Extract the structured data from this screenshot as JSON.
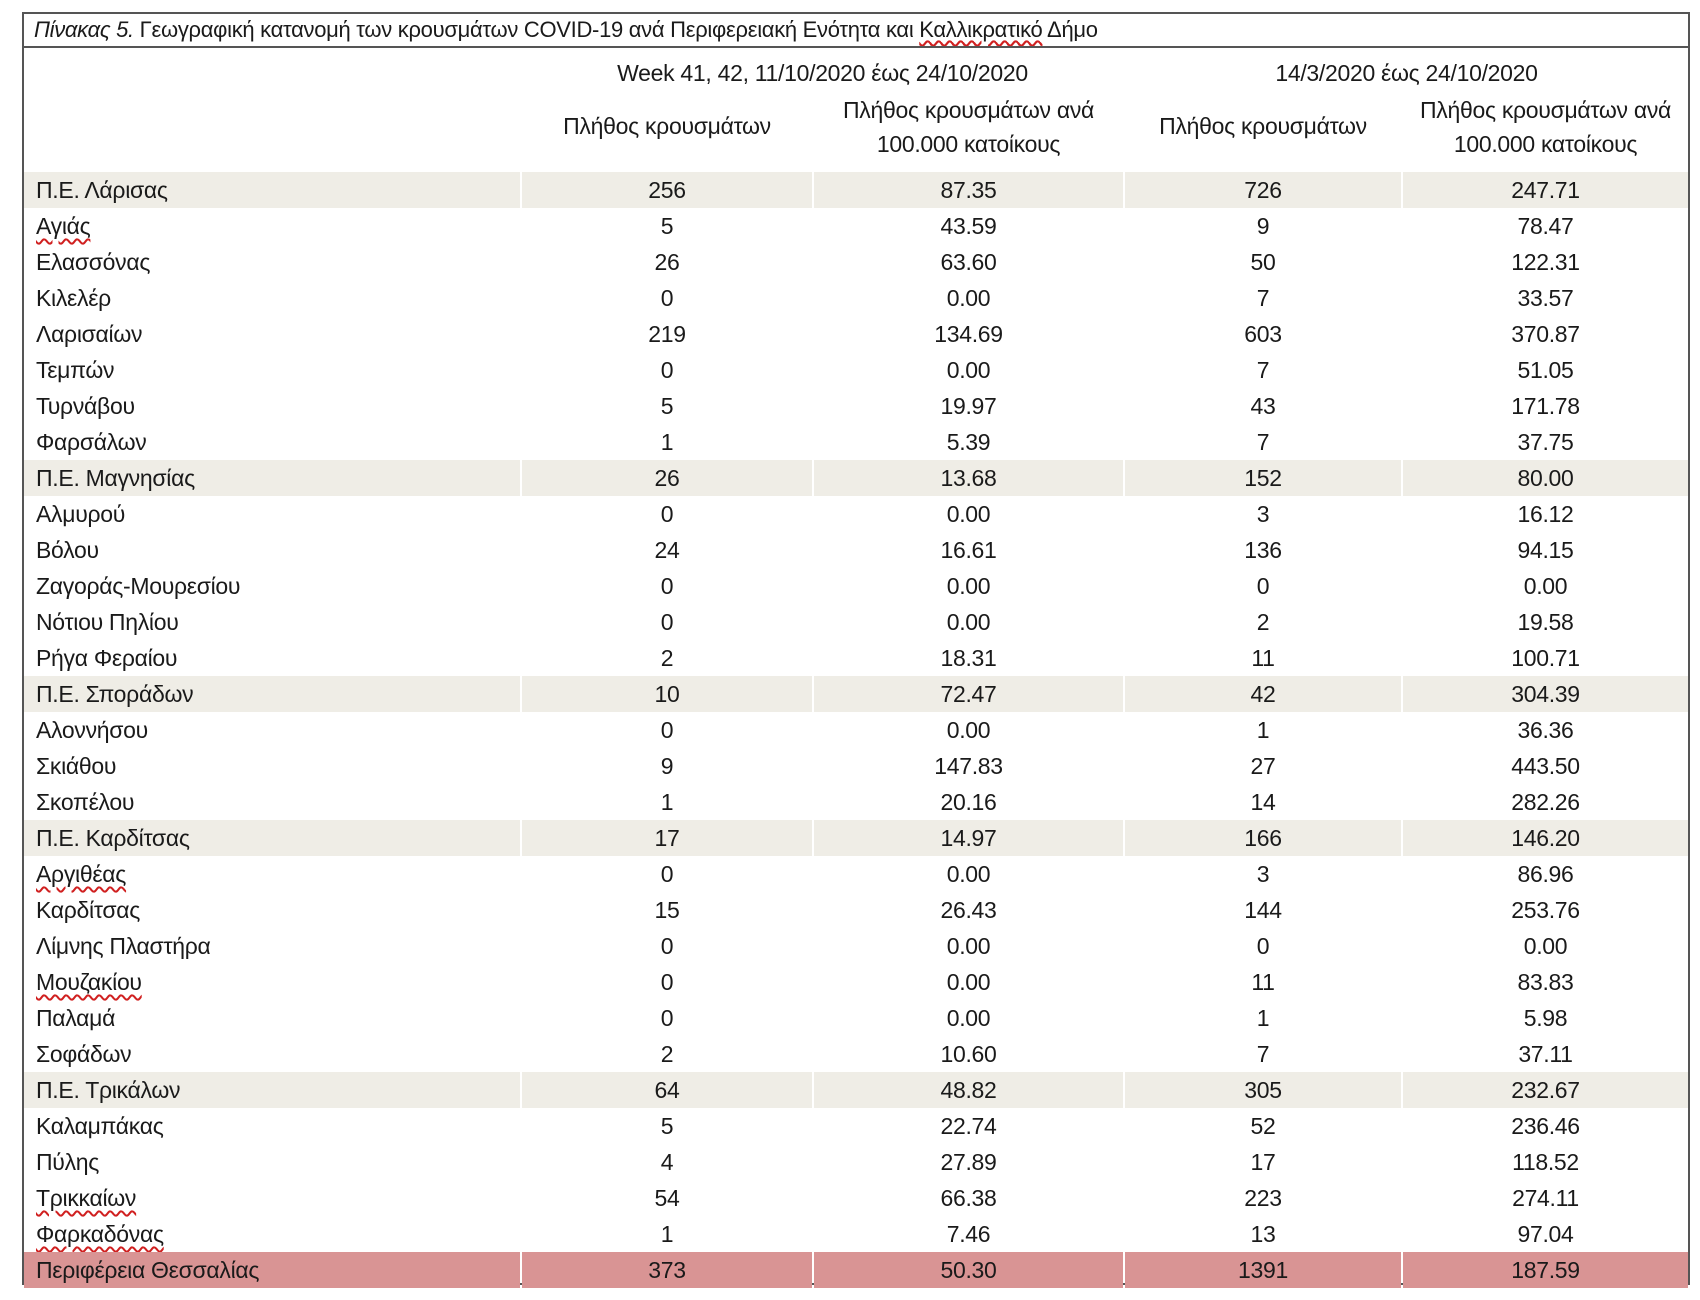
{
  "caption": {
    "label": "Πίνακας 5.",
    "text_before": " Γεωγραφική κατανομή των κρουσμάτων COVID-19 ανά Περιφερειακή Ενότητα και ",
    "text_marked": "Καλλικρατικό",
    "text_after": " Δήμο"
  },
  "groups": {
    "period1": "Week 41, 42, 11/10/2020 έως 24/10/2020",
    "period2": "14/3/2020 έως 24/10/2020"
  },
  "columns": {
    "count": "Πλήθος κρουσμάτων",
    "rate_line1": "Πλήθος κρουσμάτων ανά",
    "rate_line2": "100.000 κατοίκους"
  },
  "rows": [
    {
      "name": "Π.Ε. Λάρισας",
      "v1": "256",
      "v2": "87.35",
      "v3": "726",
      "v4": "247.71",
      "kind": "shaded"
    },
    {
      "name": "Αγιάς",
      "v1": "5",
      "v2": "43.59",
      "v3": "9",
      "v4": "78.47",
      "kind": "plain",
      "marked": true
    },
    {
      "name": "Ελασσόνας",
      "v1": "26",
      "v2": "63.60",
      "v3": "50",
      "v4": "122.31",
      "kind": "plain"
    },
    {
      "name": "Κιλελέρ",
      "v1": "0",
      "v2": "0.00",
      "v3": "7",
      "v4": "33.57",
      "kind": "plain"
    },
    {
      "name": "Λαρισαίων",
      "v1": "219",
      "v2": "134.69",
      "v3": "603",
      "v4": "370.87",
      "kind": "plain"
    },
    {
      "name": "Τεμπών",
      "v1": "0",
      "v2": "0.00",
      "v3": "7",
      "v4": "51.05",
      "kind": "plain"
    },
    {
      "name": "Τυρνάβου",
      "v1": "5",
      "v2": "19.97",
      "v3": "43",
      "v4": "171.78",
      "kind": "plain"
    },
    {
      "name": "Φαρσάλων",
      "v1": "1",
      "v2": "5.39",
      "v3": "7",
      "v4": "37.75",
      "kind": "plain"
    },
    {
      "name": "Π.Ε. Μαγνησίας",
      "v1": "26",
      "v2": "13.68",
      "v3": "152",
      "v4": "80.00",
      "kind": "shaded"
    },
    {
      "name": "Αλμυρού",
      "v1": "0",
      "v2": "0.00",
      "v3": "3",
      "v4": "16.12",
      "kind": "plain"
    },
    {
      "name": "Βόλου",
      "v1": "24",
      "v2": "16.61",
      "v3": "136",
      "v4": "94.15",
      "kind": "plain"
    },
    {
      "name": "Ζαγοράς-Μουρεσίου",
      "v1": "0",
      "v2": "0.00",
      "v3": "0",
      "v4": "0.00",
      "kind": "plain"
    },
    {
      "name": "Νότιου Πηλίου",
      "v1": "0",
      "v2": "0.00",
      "v3": "2",
      "v4": "19.58",
      "kind": "plain"
    },
    {
      "name": "Ρήγα Φεραίου",
      "v1": "2",
      "v2": "18.31",
      "v3": "11",
      "v4": "100.71",
      "kind": "plain"
    },
    {
      "name": "Π.Ε. Σποράδων",
      "v1": "10",
      "v2": "72.47",
      "v3": "42",
      "v4": "304.39",
      "kind": "shaded"
    },
    {
      "name": "Αλοννήσου",
      "v1": "0",
      "v2": "0.00",
      "v3": "1",
      "v4": "36.36",
      "kind": "plain"
    },
    {
      "name": "Σκιάθου",
      "v1": "9",
      "v2": "147.83",
      "v3": "27",
      "v4": "443.50",
      "kind": "plain"
    },
    {
      "name": "Σκοπέλου",
      "v1": "1",
      "v2": "20.16",
      "v3": "14",
      "v4": "282.26",
      "kind": "plain"
    },
    {
      "name": "Π.Ε. Καρδίτσας",
      "v1": "17",
      "v2": "14.97",
      "v3": "166",
      "v4": "146.20",
      "kind": "shaded"
    },
    {
      "name": "Αργιθέας",
      "v1": "0",
      "v2": "0.00",
      "v3": "3",
      "v4": "86.96",
      "kind": "plain",
      "marked": true
    },
    {
      "name": "Καρδίτσας",
      "v1": "15",
      "v2": "26.43",
      "v3": "144",
      "v4": "253.76",
      "kind": "plain"
    },
    {
      "name": "Λίμνης Πλαστήρα",
      "v1": "0",
      "v2": "0.00",
      "v3": "0",
      "v4": "0.00",
      "kind": "plain"
    },
    {
      "name": "Μουζακίου",
      "v1": "0",
      "v2": "0.00",
      "v3": "11",
      "v4": "83.83",
      "kind": "plain",
      "marked": true
    },
    {
      "name": "Παλαμά",
      "v1": "0",
      "v2": "0.00",
      "v3": "1",
      "v4": "5.98",
      "kind": "plain"
    },
    {
      "name": "Σοφάδων",
      "v1": "2",
      "v2": "10.60",
      "v3": "7",
      "v4": "37.11",
      "kind": "plain"
    },
    {
      "name": "Π.Ε. Τρικάλων",
      "v1": "64",
      "v2": "48.82",
      "v3": "305",
      "v4": "232.67",
      "kind": "shaded"
    },
    {
      "name": "Καλαμπάκας",
      "v1": "5",
      "v2": "22.74",
      "v3": "52",
      "v4": "236.46",
      "kind": "plain"
    },
    {
      "name": "Πύλης",
      "v1": "4",
      "v2": "27.89",
      "v3": "17",
      "v4": "118.52",
      "kind": "plain"
    },
    {
      "name": "Τρικκαίων",
      "v1": "54",
      "v2": "66.38",
      "v3": "223",
      "v4": "274.11",
      "kind": "plain",
      "marked": true
    },
    {
      "name": "Φαρκαδόνας",
      "v1": "1",
      "v2": "7.46",
      "v3": "13",
      "v4": "97.04",
      "kind": "plain",
      "marked": true
    },
    {
      "name": "Περιφέρεια Θεσσαλίας",
      "v1": "373",
      "v2": "50.30",
      "v3": "1391",
      "v4": "187.59",
      "kind": "total"
    }
  ],
  "colors": {
    "shaded_row": "#efede6",
    "total_row": "#d99494",
    "border": "#555555",
    "spellcheck_underline": "#d02020"
  }
}
